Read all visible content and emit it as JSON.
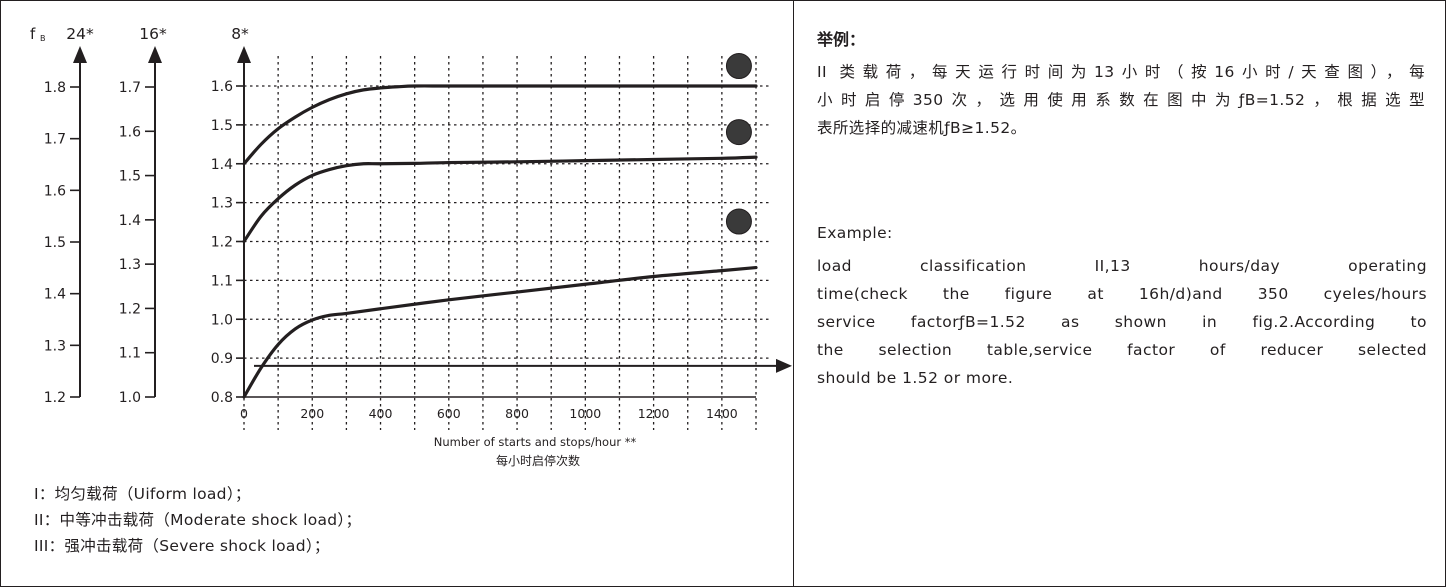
{
  "chart_data": {
    "type": "line",
    "xlabel_en": "Number of starts and stops/hour **",
    "xlabel_cn": "每小时启停次数",
    "xlim": [
      0,
      1500
    ],
    "x_ticks": [
      "0",
      "200",
      "400",
      "600",
      "800",
      "1000",
      "1200",
      "1400"
    ],
    "y_axis_symbol": "f",
    "y_axis_subscript": "B",
    "axes": [
      {
        "header": "24*",
        "ticks": [
          "1.2",
          "1.3",
          "1.4",
          "1.5",
          "1.6",
          "1.7",
          "1.8"
        ],
        "ylim": [
          1.2,
          1.8
        ]
      },
      {
        "header": "16*",
        "ticks": [
          "1.0",
          "1.1",
          "1.2",
          "1.3",
          "1.4",
          "1.5",
          "1.6",
          "1.7"
        ],
        "ylim": [
          1.0,
          1.7
        ]
      },
      {
        "header": "8*",
        "ticks": [
          "0.8",
          "0.9",
          "1.0",
          "1.1",
          "1.2",
          "1.3",
          "1.4",
          "1.5",
          "1.6"
        ],
        "ylim": [
          0.8,
          1.6
        ]
      }
    ],
    "series": [
      {
        "x": [
          0,
          50,
          100,
          150,
          200,
          250,
          300,
          350,
          400,
          450,
          500,
          600,
          800,
          1000,
          1200,
          1400,
          1500
        ],
        "y": [
          1.4,
          1.45,
          1.49,
          1.52,
          1.545,
          1.565,
          1.58,
          1.59,
          1.595,
          1.598,
          1.6,
          1.6,
          1.6,
          1.6,
          1.6,
          1.6,
          1.6
        ]
      },
      {
        "x": [
          0,
          50,
          100,
          150,
          200,
          250,
          300,
          350,
          400,
          500,
          600,
          800,
          1000,
          1200,
          1400,
          1500
        ],
        "y": [
          1.2,
          1.265,
          1.31,
          1.345,
          1.37,
          1.385,
          1.395,
          1.4,
          1.4,
          1.401,
          1.403,
          1.405,
          1.408,
          1.411,
          1.414,
          1.417
        ]
      },
      {
        "x": [
          0,
          50,
          100,
          150,
          200,
          250,
          300,
          400,
          600,
          800,
          1000,
          1200,
          1400,
          1500
        ],
        "y": [
          0.8,
          0.875,
          0.935,
          0.975,
          0.998,
          1.01,
          1.015,
          1.027,
          1.05,
          1.07,
          1.09,
          1.11,
          1.125,
          1.133
        ]
      }
    ],
    "markers": [
      {
        "x": 1450,
        "y": 1.6
      },
      {
        "x": 1450,
        "y": 1.43
      },
      {
        "x": 1450,
        "y": 1.2
      }
    ],
    "reference_line_y": 0.88,
    "grid": true
  },
  "legend": [
    "I：均匀载荷（Uiform load）；",
    "II：中等冲击载荷（Moderate shock load）；",
    "III：强冲击载荷（Severe shock load）；"
  ],
  "example_cn": {
    "title": "举例：",
    "lines": [
      "II 类载荷，每天运行时间为13小时（按16小时/天查图），每",
      "小时启停350次，选用使用系数在图中为ƒB=1.52，根据选型",
      "表所选择的减速机ƒB≥1.52。"
    ]
  },
  "example_en": {
    "title": "Example:",
    "lines": [
      "load   classification II,13 hours/day operating",
      "time(check the figure at 16h/d)and 350 cyeles/hours",
      "service factorƒB=1.52 as shown in fig.2.According to",
      "the selection table,service factor of  reducer selected",
      "should be 1.52 or more."
    ]
  }
}
